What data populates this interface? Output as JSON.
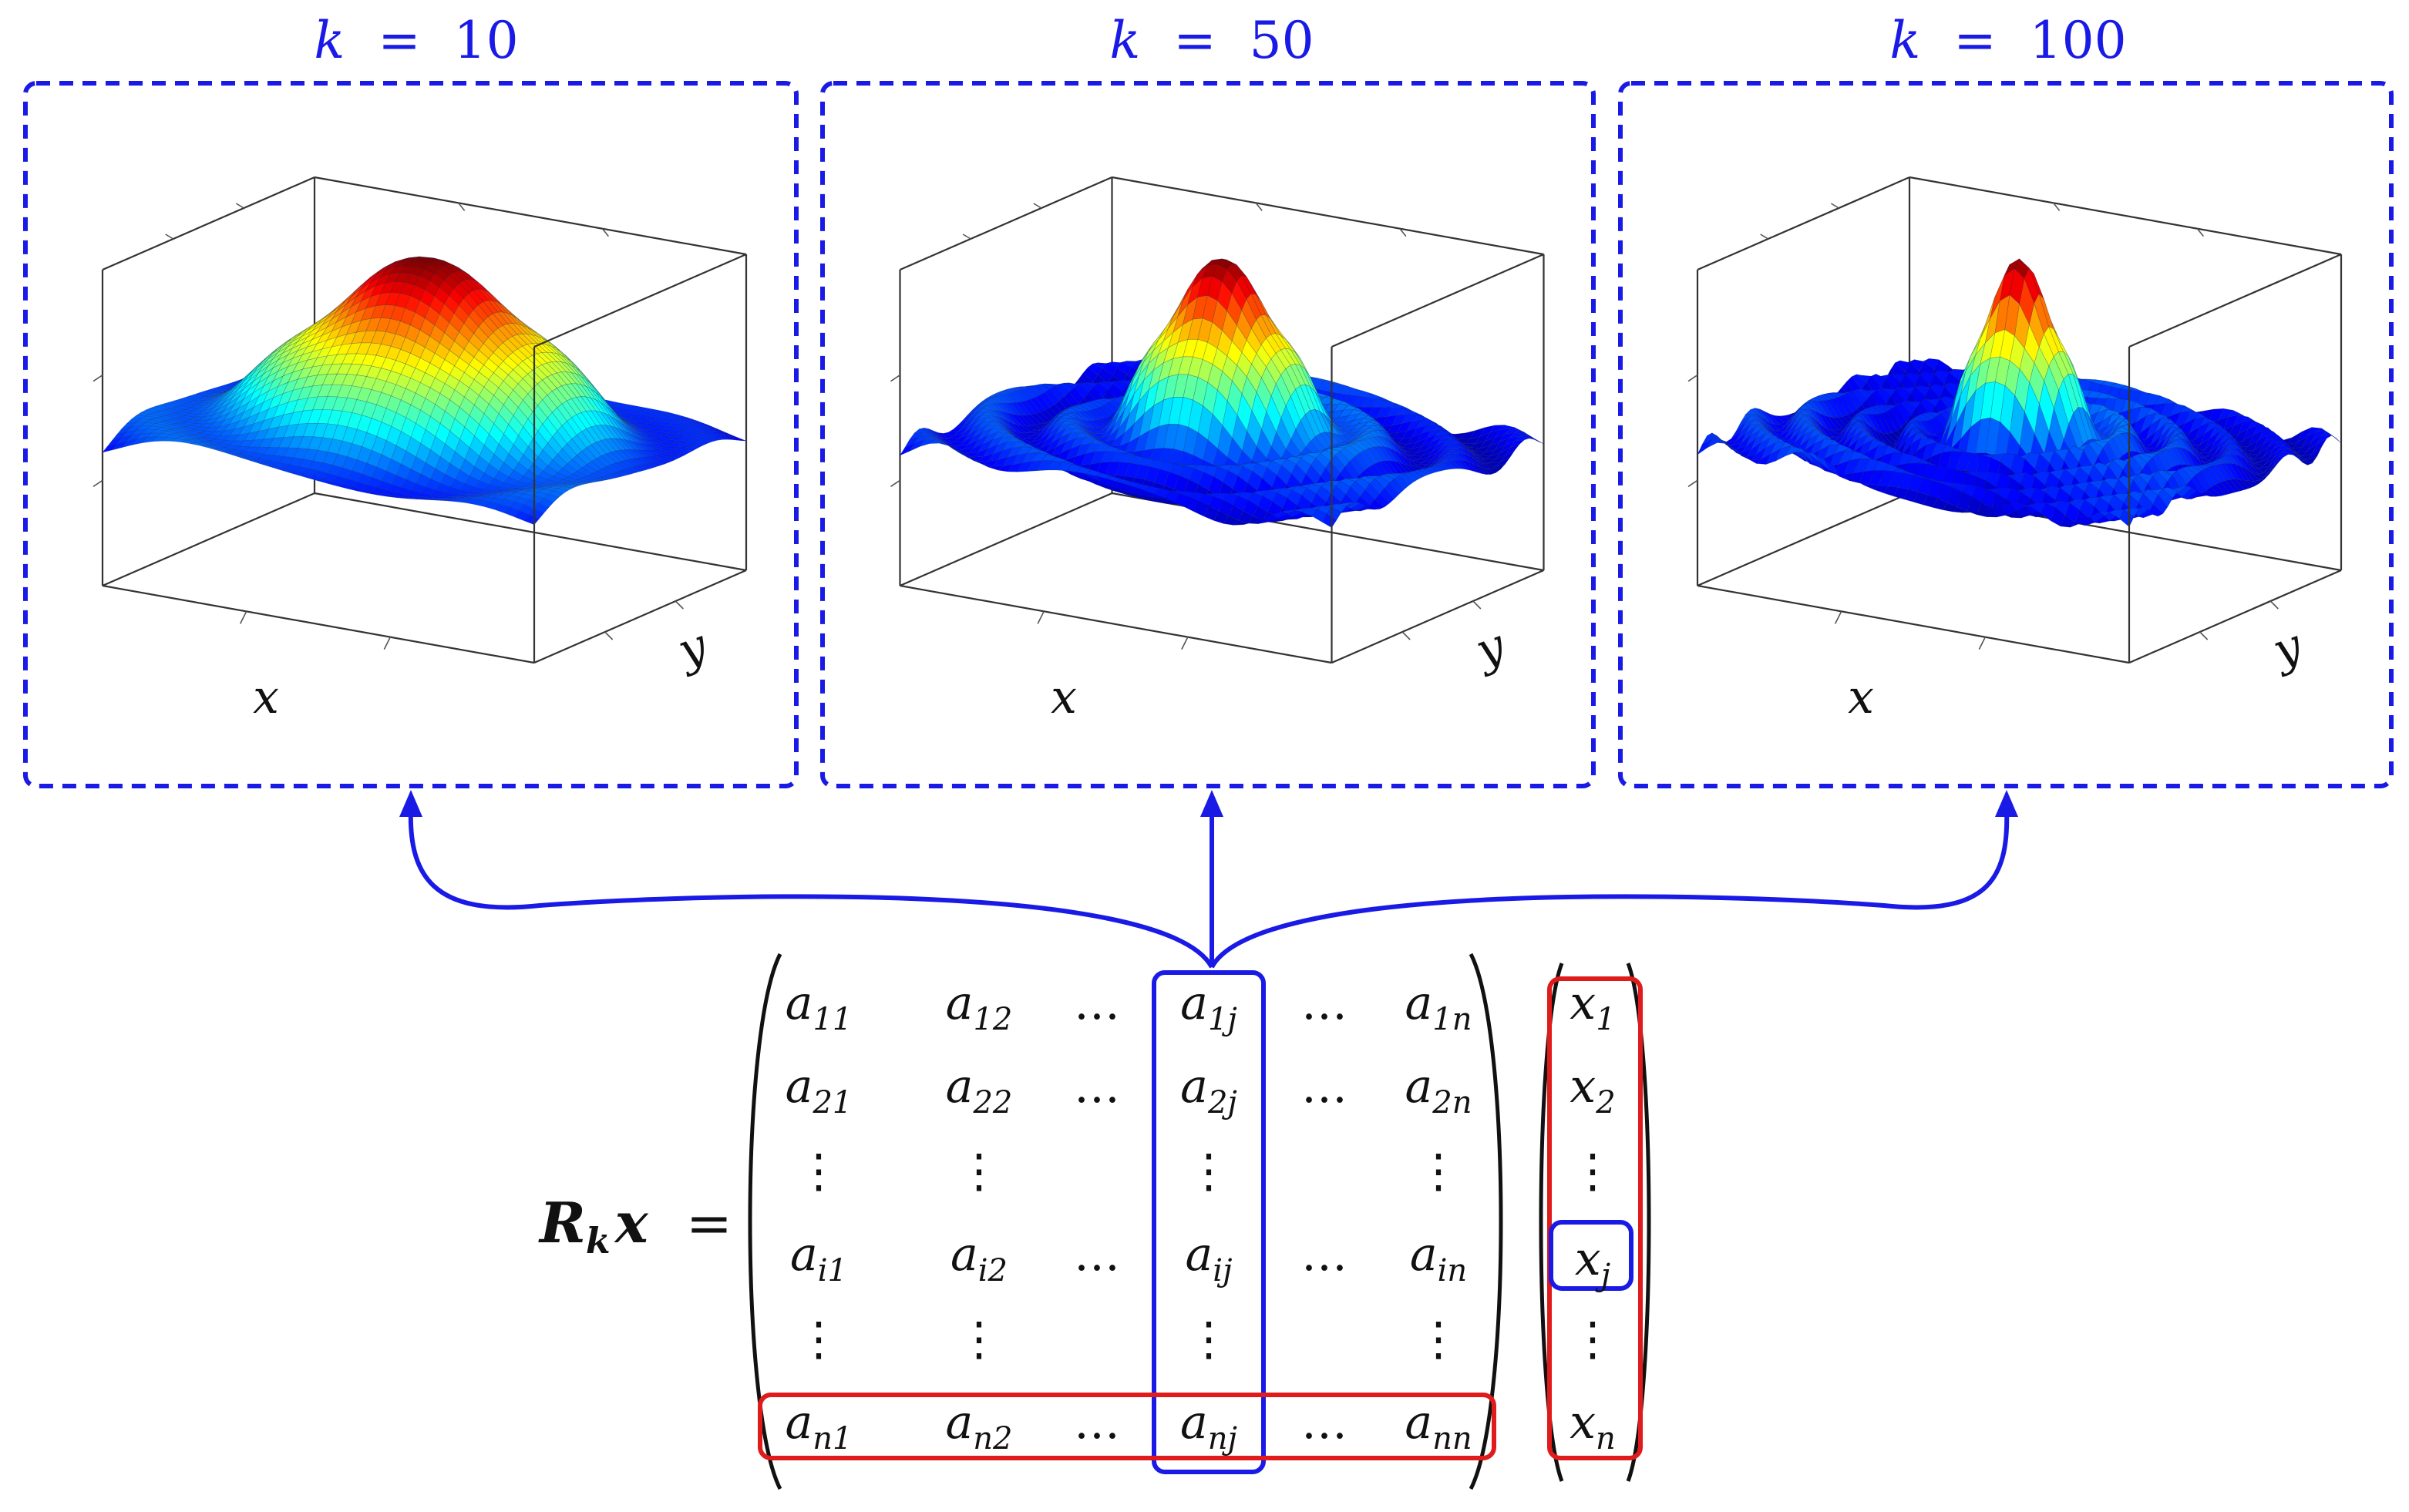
{
  "panels": [
    {
      "k_label": "k",
      "eq": "=",
      "k_value": "10",
      "x_label": "x",
      "y_label": "y",
      "peak_width": 0.32,
      "ripple": 0.3
    },
    {
      "k_label": "k",
      "eq": "=",
      "k_value": "50",
      "x_label": "x",
      "y_label": "y",
      "peak_width": 0.17,
      "ripple": 0.16
    },
    {
      "k_label": "k",
      "eq": "=",
      "k_value": "100",
      "x_label": "x",
      "y_label": "y",
      "peak_width": 0.11,
      "ripple": 0.11
    }
  ],
  "equation": {
    "lhs_R": "R",
    "lhs_k": "k",
    "lhs_x": "x",
    "equals": "=",
    "matrix_rows": [
      [
        {
          "b": "a",
          "s": "11"
        },
        {
          "b": "a",
          "s": "12"
        },
        {
          "b": "…",
          "s": ""
        },
        {
          "b": "a",
          "s": "1j"
        },
        {
          "b": "…",
          "s": ""
        },
        {
          "b": "a",
          "s": "1n"
        }
      ],
      [
        {
          "b": "a",
          "s": "21"
        },
        {
          "b": "a",
          "s": "22"
        },
        {
          "b": "…",
          "s": ""
        },
        {
          "b": "a",
          "s": "2j"
        },
        {
          "b": "…",
          "s": ""
        },
        {
          "b": "a",
          "s": "2n"
        }
      ],
      [
        {
          "b": "⋮",
          "s": ""
        },
        {
          "b": "⋮",
          "s": ""
        },
        {
          "b": "",
          "s": ""
        },
        {
          "b": "⋮",
          "s": ""
        },
        {
          "b": "",
          "s": ""
        },
        {
          "b": "⋮",
          "s": ""
        }
      ],
      [
        {
          "b": "a",
          "s": "i1"
        },
        {
          "b": "a",
          "s": "i2"
        },
        {
          "b": "…",
          "s": ""
        },
        {
          "b": "a",
          "s": "ij"
        },
        {
          "b": "…",
          "s": ""
        },
        {
          "b": "a",
          "s": "in"
        }
      ],
      [
        {
          "b": "⋮",
          "s": ""
        },
        {
          "b": "⋮",
          "s": ""
        },
        {
          "b": "",
          "s": ""
        },
        {
          "b": "⋮",
          "s": ""
        },
        {
          "b": "",
          "s": ""
        },
        {
          "b": "⋮",
          "s": ""
        }
      ],
      [
        {
          "b": "a",
          "s": "n1"
        },
        {
          "b": "a",
          "s": "n2"
        },
        {
          "b": "…",
          "s": ""
        },
        {
          "b": "a",
          "s": "nj"
        },
        {
          "b": "…",
          "s": ""
        },
        {
          "b": "a",
          "s": "nn"
        }
      ]
    ],
    "vector": [
      {
        "b": "x",
        "s": "1"
      },
      {
        "b": "x",
        "s": "2"
      },
      {
        "b": "⋮",
        "s": ""
      },
      {
        "b": "x",
        "s": "j"
      },
      {
        "b": "⋮",
        "s": ""
      },
      {
        "b": "x",
        "s": "n"
      }
    ]
  },
  "colors": {
    "blue": "#1a1ae6",
    "red": "#e01b1b",
    "axis": "#333333",
    "text": "#111111"
  }
}
